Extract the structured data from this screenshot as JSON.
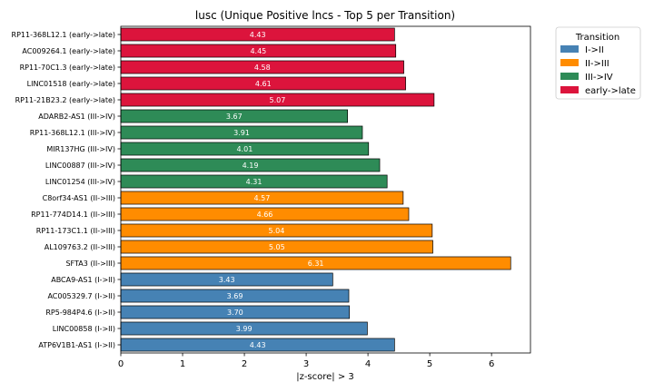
{
  "chart_data": {
    "type": "bar",
    "orientation": "horizontal",
    "title": "lusc (Unique Positive lncs - Top 5 per Transition)",
    "xlabel": "|z-score| > 3",
    "ylabel": "",
    "xlim": [
      0,
      6.63
    ],
    "xticks": [
      0,
      1,
      2,
      3,
      4,
      5,
      6
    ],
    "grid": false,
    "legend": {
      "title": "Transition",
      "placement": "outside-top-right",
      "entries": [
        {
          "name": "I->II",
          "color": "#4682b4"
        },
        {
          "name": "II->III",
          "color": "#ff8c00"
        },
        {
          "name": "III->IV",
          "color": "#2e8b57"
        },
        {
          "name": "early->late",
          "color": "#dc143c"
        }
      ]
    },
    "bars": [
      {
        "category": "RP11-368L12.1 (early->late)",
        "value": 4.43,
        "label": "4.43",
        "group": "early->late"
      },
      {
        "category": "AC009264.1 (early->late)",
        "value": 4.45,
        "label": "4.45",
        "group": "early->late"
      },
      {
        "category": "RP11-70C1.3 (early->late)",
        "value": 4.58,
        "label": "4.58",
        "group": "early->late"
      },
      {
        "category": "LINC01518 (early->late)",
        "value": 4.61,
        "label": "4.61",
        "group": "early->late"
      },
      {
        "category": "RP11-21B23.2 (early->late)",
        "value": 5.07,
        "label": "5.07",
        "group": "early->late"
      },
      {
        "category": "ADARB2-AS1 (III->IV)",
        "value": 3.67,
        "label": "3.67",
        "group": "III->IV"
      },
      {
        "category": "RP11-368L12.1 (III->IV)",
        "value": 3.91,
        "label": "3.91",
        "group": "III->IV"
      },
      {
        "category": "MIR137HG (III->IV)",
        "value": 4.01,
        "label": "4.01",
        "group": "III->IV"
      },
      {
        "category": "LINC00887 (III->IV)",
        "value": 4.19,
        "label": "4.19",
        "group": "III->IV"
      },
      {
        "category": "LINC01254 (III->IV)",
        "value": 4.31,
        "label": "4.31",
        "group": "III->IV"
      },
      {
        "category": "C8orf34-AS1 (II->III)",
        "value": 4.57,
        "label": "4.57",
        "group": "II->III"
      },
      {
        "category": "RP11-774D14.1 (II->III)",
        "value": 4.66,
        "label": "4.66",
        "group": "II->III"
      },
      {
        "category": "RP11-173C1.1 (II->III)",
        "value": 5.04,
        "label": "5.04",
        "group": "II->III"
      },
      {
        "category": "AL109763.2 (II->III)",
        "value": 5.05,
        "label": "5.05",
        "group": "II->III"
      },
      {
        "category": "SFTA3 (II->III)",
        "value": 6.31,
        "label": "6.31",
        "group": "II->III"
      },
      {
        "category": "ABCA9-AS1 (I->II)",
        "value": 3.43,
        "label": "3.43",
        "group": "I->II"
      },
      {
        "category": "AC005329.7 (I->II)",
        "value": 3.69,
        "label": "3.69",
        "group": "I->II"
      },
      {
        "category": "RP5-984P4.6 (I->II)",
        "value": 3.7,
        "label": "3.70",
        "group": "I->II"
      },
      {
        "category": "LINC00858 (I->II)",
        "value": 3.99,
        "label": "3.99",
        "group": "I->II"
      },
      {
        "category": "ATP6V1B1-AS1 (I->II)",
        "value": 4.43,
        "label": "4.43",
        "group": "I->II"
      }
    ]
  }
}
